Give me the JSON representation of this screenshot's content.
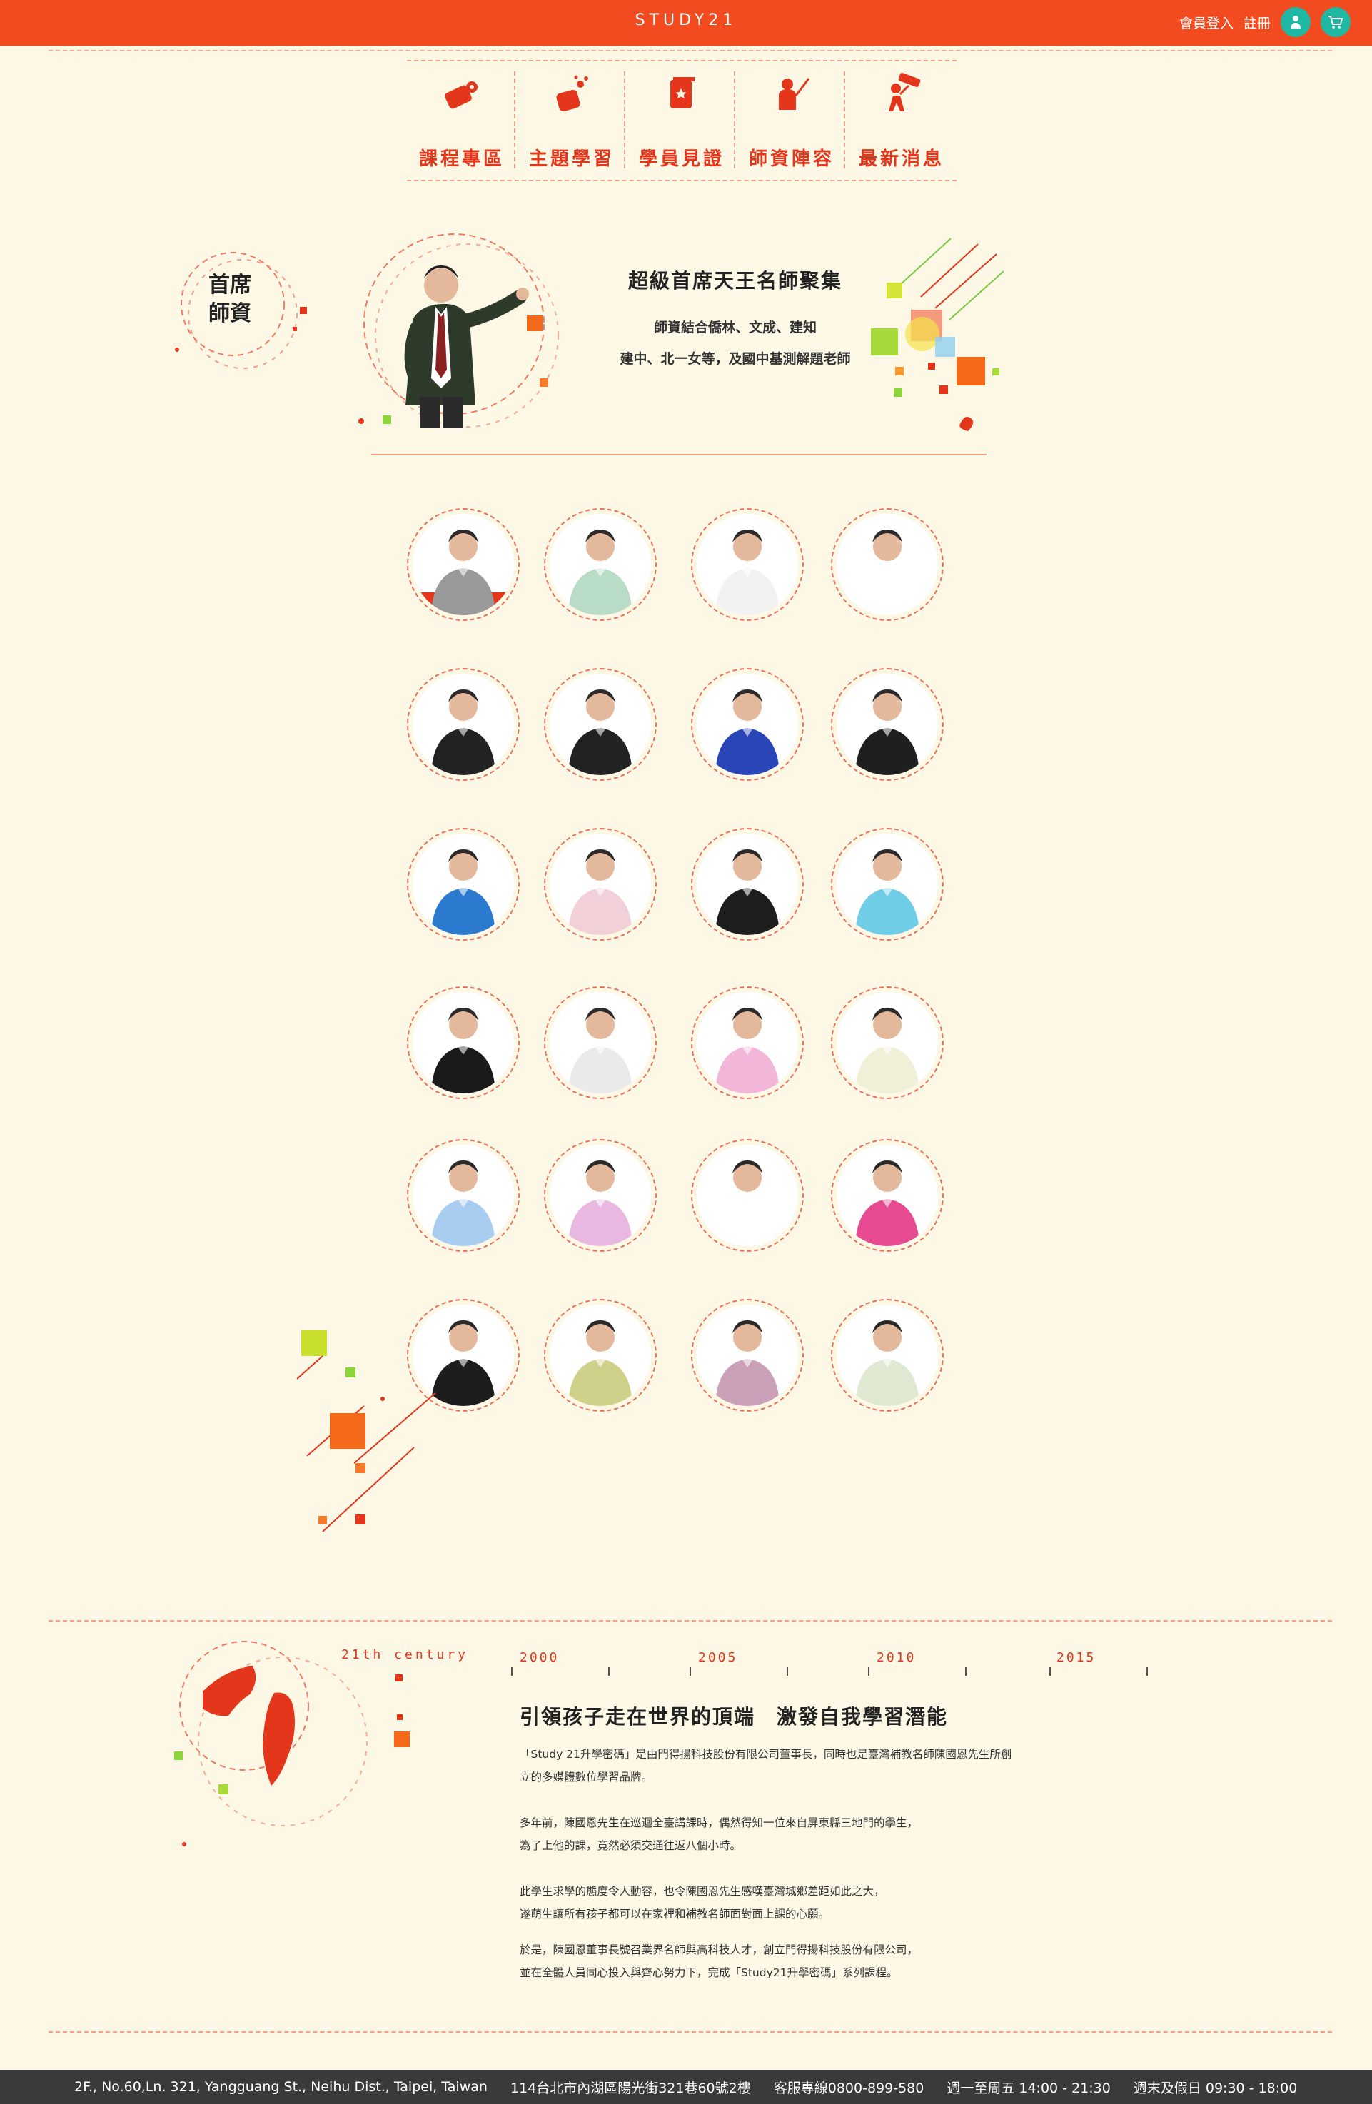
{
  "header": {
    "brand": "STUDY21",
    "login_label": "會員登入",
    "register_label": "註冊",
    "member_icon": "person-icon",
    "cart_icon": "cart-icon"
  },
  "nav": {
    "items": [
      {
        "label": "課程專區",
        "icon": "course-icon"
      },
      {
        "label": "主題學習",
        "icon": "topic-icon"
      },
      {
        "label": "學員見證",
        "icon": "testimonial-icon"
      },
      {
        "label": "師資陣容",
        "icon": "teacher-icon"
      },
      {
        "label": "最新消息",
        "icon": "news-icon"
      }
    ]
  },
  "hero": {
    "section_label": [
      "首席",
      "師資"
    ],
    "title": "超級首席天王名師聚集",
    "line1": "師資結合僑林、文成、建知",
    "line2": "建中、北一女等，及國中基測解題老師"
  },
  "history": {
    "century": "21th century",
    "years": [
      "2000",
      "2005",
      "2010",
      "2015"
    ],
    "title": "引領孩子走在世界的頂端　激發自我學習潛能",
    "paragraphs": [
      [
        "「Study 21升學密碼」是由門得揚科技股份有限公司董事長，同時也是臺灣補教名師陳國恩先生所創",
        "立的多媒體數位學習品牌。"
      ],
      [
        "多年前，陳國恩先生在巡迴全臺講課時，偶然得知一位來自屏東縣三地門的學生，",
        "為了上他的課，竟然必須交通往返八個小時。"
      ],
      [
        "此學生求學的態度令人動容，也令陳國恩先生感嘆臺灣城鄉差距如此之大，",
        "遂萌生讓所有孩子都可以在家裡和補教名師面對面上課的心願。"
      ],
      [
        "於是，陳國恩董事長號召業界名師與高科技人才，創立門得揚科技股份有限公司，",
        "並在全體人員同心投入與齊心努力下，完成「Study21升學密碼」系列課程。"
      ]
    ]
  },
  "footer": {
    "address_en": "2F., No.60,Ln. 321, Yangguang St., Neihu Dist., Taipei, Taiwan",
    "address_zh": "114台北市內湖區陽光街321巷60號2樓",
    "hotline": "客服專線0800-899-580",
    "hours_weekday": "週一至周五 14:00 - 21:30",
    "hours_weekend": "週末及假日 09:30 - 18:00"
  },
  "colors": {
    "accent": "#f24b1f",
    "background": "#fdf8e6",
    "teal": "#1fb8a2",
    "footer": "#3a3a3a"
  }
}
